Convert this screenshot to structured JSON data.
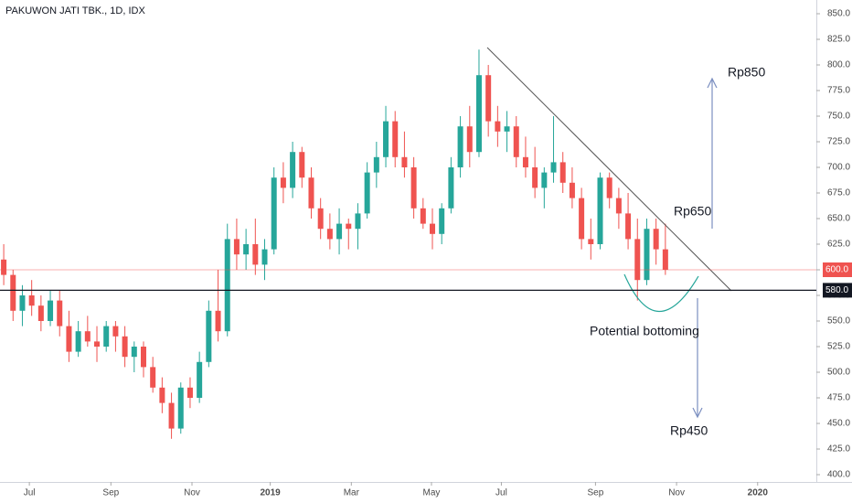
{
  "chart_data": {
    "type": "candlestick",
    "title": "PAKUWON JATI TBK., 1D, IDX",
    "up_color": "#26a69a",
    "down_color": "#ef5350",
    "categories": [
      null,
      null,
      null,
      null,
      null,
      null,
      null,
      null,
      null,
      null,
      null,
      null,
      null,
      null,
      null,
      null,
      null,
      null,
      null,
      null,
      null,
      null,
      null,
      null,
      null,
      null,
      null,
      null,
      null,
      null,
      null,
      null,
      null,
      null,
      null,
      null,
      null,
      null,
      null,
      null,
      null,
      null,
      null,
      null,
      null,
      null,
      null,
      null,
      null,
      null,
      null,
      null,
      null,
      null,
      null,
      null,
      null,
      null,
      null,
      null,
      null,
      null,
      null,
      null,
      null,
      null,
      null,
      null,
      null,
      null,
      null,
      null
    ],
    "open": [
      610,
      595,
      560,
      575,
      565,
      550,
      570,
      545,
      520,
      540,
      530,
      525,
      545,
      535,
      515,
      525,
      505,
      485,
      470,
      445,
      485,
      475,
      510,
      560,
      540,
      630,
      615,
      625,
      605,
      620,
      690,
      680,
      715,
      690,
      660,
      640,
      630,
      645,
      640,
      655,
      695,
      710,
      745,
      710,
      700,
      660,
      645,
      635,
      660,
      700,
      740,
      715,
      790,
      745,
      735,
      740,
      710,
      700,
      680,
      695,
      705,
      685,
      670,
      630,
      625,
      690,
      670,
      655,
      630,
      590,
      640,
      620
    ],
    "high": [
      625,
      600,
      585,
      590,
      575,
      580,
      580,
      560,
      550,
      555,
      545,
      550,
      550,
      545,
      530,
      530,
      515,
      495,
      480,
      490,
      495,
      520,
      570,
      600,
      645,
      650,
      640,
      650,
      630,
      700,
      705,
      725,
      720,
      700,
      670,
      655,
      660,
      650,
      665,
      705,
      725,
      760,
      755,
      735,
      710,
      670,
      660,
      665,
      710,
      750,
      760,
      815,
      800,
      760,
      755,
      750,
      730,
      720,
      700,
      750,
      715,
      700,
      680,
      650,
      695,
      695,
      680,
      675,
      650,
      650,
      650,
      645
    ],
    "low": [
      585,
      550,
      545,
      555,
      540,
      545,
      535,
      510,
      515,
      525,
      510,
      520,
      520,
      505,
      500,
      495,
      480,
      460,
      435,
      440,
      465,
      470,
      505,
      530,
      535,
      600,
      600,
      595,
      590,
      615,
      665,
      670,
      680,
      650,
      630,
      620,
      615,
      620,
      620,
      650,
      680,
      700,
      700,
      690,
      650,
      640,
      620,
      625,
      655,
      690,
      700,
      710,
      730,
      720,
      715,
      700,
      690,
      670,
      660,
      685,
      675,
      660,
      620,
      610,
      620,
      660,
      640,
      620,
      570,
      585,
      605,
      595
    ],
    "close": [
      595,
      560,
      575,
      565,
      550,
      570,
      545,
      520,
      540,
      530,
      525,
      545,
      535,
      515,
      525,
      505,
      485,
      470,
      445,
      485,
      475,
      510,
      560,
      540,
      630,
      615,
      625,
      605,
      620,
      690,
      680,
      715,
      690,
      660,
      640,
      630,
      645,
      640,
      655,
      695,
      710,
      745,
      710,
      700,
      660,
      645,
      635,
      660,
      700,
      740,
      715,
      790,
      745,
      735,
      740,
      710,
      700,
      680,
      695,
      705,
      685,
      670,
      630,
      625,
      690,
      670,
      655,
      630,
      590,
      640,
      620,
      600
    ],
    "xlim": [
      -0.4,
      87.2
    ],
    "xticks": [
      {
        "value": 2.75,
        "label": "Jul"
      },
      {
        "value": 11.5,
        "label": "Sep"
      },
      {
        "value": 20.2,
        "label": "Nov"
      },
      {
        "value": 28.6,
        "label": "2019"
      },
      {
        "value": 37.3,
        "label": "Mar"
      },
      {
        "value": 45.9,
        "label": "May"
      },
      {
        "value": 53.4,
        "label": "Jul"
      },
      {
        "value": 63.5,
        "label": "Sep"
      },
      {
        "value": 72.2,
        "label": "Nov"
      },
      {
        "value": 80.9,
        "label": "2020"
      }
    ],
    "ylim": [
      386.6,
      863.4
    ],
    "yticks": [
      {
        "value": 400,
        "label": "400.0"
      },
      {
        "value": 425,
        "label": "425.0"
      },
      {
        "value": 450,
        "label": "450.0"
      },
      {
        "value": 475,
        "label": "475.0"
      },
      {
        "value": 500,
        "label": "500.0"
      },
      {
        "value": 525,
        "label": "525.0"
      },
      {
        "value": 550,
        "label": "550.0"
      },
      {
        "value": 575,
        "label": "575.0"
      },
      {
        "value": 600,
        "label": "600.0"
      },
      {
        "value": 625,
        "label": "625.0"
      },
      {
        "value": 650,
        "label": "650.0"
      },
      {
        "value": 675,
        "label": "675.0"
      },
      {
        "value": 700,
        "label": "700.0"
      },
      {
        "value": 725,
        "label": "725.0"
      },
      {
        "value": 750,
        "label": "750.0"
      },
      {
        "value": 775,
        "label": "775.0"
      },
      {
        "value": 800,
        "label": "800.0"
      },
      {
        "value": 825,
        "label": "825.0"
      },
      {
        "value": 850,
        "label": "850.0"
      }
    ],
    "price_lines": [
      {
        "value": 600,
        "label": "600.0",
        "color": "#ef5350"
      },
      {
        "value": 580,
        "label": "580.0",
        "color": "#131722"
      }
    ],
    "annotations": [
      "Rp850",
      "Rp650",
      "Potential bottoming",
      "Rp450"
    ]
  }
}
